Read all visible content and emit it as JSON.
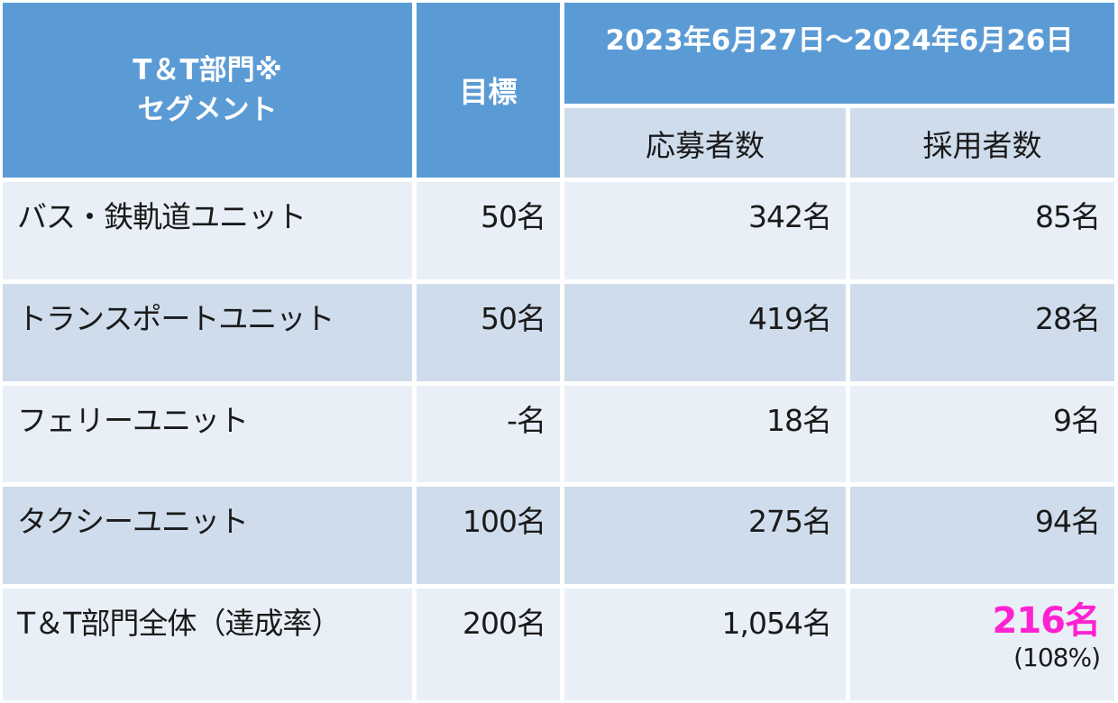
{
  "header": {
    "segment_line1": "T＆T部門※",
    "segment_line2": "セグメント",
    "target": "目標",
    "period": "2023年6月27日～2024年6月26日",
    "applicants": "応募者数",
    "hires": "採用者数"
  },
  "rows": [
    {
      "segment": "バス・鉄軌道ユニット",
      "target": "50名",
      "applicants": "342名",
      "hires": "85名"
    },
    {
      "segment": "トランスポートユニット",
      "target": "50名",
      "applicants": "419名",
      "hires": "28名"
    },
    {
      "segment": "フェリーユニット",
      "target": "-名",
      "applicants": "18名",
      "hires": "9名"
    },
    {
      "segment": "タクシーユニット",
      "target": "100名",
      "applicants": "275名",
      "hires": "94名"
    },
    {
      "segment": "T＆T部門全体（達成率）",
      "target": "200名",
      "applicants": "1,054名",
      "hires": "216名",
      "rate": "(108%)"
    }
  ],
  "colors": {
    "header_bg": "#5b9bd5",
    "subheader_bg": "#cfdcec",
    "row_light": "#e9eff7",
    "row_dark": "#cfdcec",
    "highlight": "#ff22d0"
  }
}
